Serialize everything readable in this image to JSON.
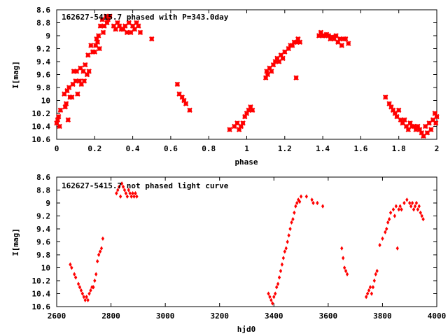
{
  "colors": {
    "points": "#ff0000",
    "axes": "#000000",
    "background": "#ffffff"
  },
  "chart_data": [
    {
      "type": "scatter",
      "title": "162627-5415.7 phased with P=343.0day",
      "xlabel": "phase",
      "ylabel": "I[mag]",
      "xlim": [
        0,
        2
      ],
      "ylim": [
        8.6,
        10.6
      ],
      "y_inverted": true,
      "grid": false,
      "xticks": [
        "0",
        "0.2",
        "0.4",
        "0.6",
        "0.8",
        "1",
        "1.2",
        "1.4",
        "1.6",
        "1.8",
        "2"
      ],
      "yticks": [
        "8.6",
        "8.8",
        "9",
        "9.2",
        "9.4",
        "9.6",
        "9.8",
        "10",
        "10.2",
        "10.4",
        "10.6"
      ],
      "series": [
        {
          "x": [
            0.0,
            0.005,
            0.01,
            0.015,
            0.02,
            0.04,
            0.045,
            0.05,
            0.055,
            0.06,
            0.065,
            0.07,
            0.08,
            0.085,
            0.09,
            0.1,
            0.105,
            0.11,
            0.12,
            0.125,
            0.13,
            0.14,
            0.145,
            0.15,
            0.16,
            0.165,
            0.17,
            0.18,
            0.19,
            0.2,
            0.205,
            0.21,
            0.215,
            0.22,
            0.225,
            0.23,
            0.24,
            0.245,
            0.25,
            0.26,
            0.265,
            0.27,
            0.28,
            0.3,
            0.31,
            0.32,
            0.33,
            0.34,
            0.35,
            0.36,
            0.37,
            0.38,
            0.39,
            0.4,
            0.41,
            0.42,
            0.43,
            0.44,
            0.5,
            0.635,
            0.645,
            0.66,
            0.67,
            0.68,
            0.7,
            0.91,
            0.935,
            0.95,
            0.96,
            0.97,
            0.98,
            0.99,
            1.0,
            1.01,
            1.02,
            1.03,
            1.1,
            1.105,
            1.11,
            1.12,
            1.13,
            1.14,
            1.15,
            1.16,
            1.17,
            1.18,
            1.19,
            1.2,
            1.22,
            1.23,
            1.24,
            1.25,
            1.26,
            1.265,
            1.27,
            1.28,
            1.38,
            1.39,
            1.4,
            1.41,
            1.42,
            1.43,
            1.44,
            1.45,
            1.46,
            1.47,
            1.48,
            1.49,
            1.5,
            1.51,
            1.52,
            1.535,
            1.73,
            1.75,
            1.76,
            1.77,
            1.78,
            1.79,
            1.8,
            1.81,
            1.82,
            1.83,
            1.84,
            1.85,
            1.86,
            1.87,
            1.88,
            1.89,
            1.9,
            1.91,
            1.92,
            1.93,
            1.94,
            1.95,
            1.96,
            1.97,
            1.98,
            1.99,
            1.995,
            2.0
          ],
          "y": [
            10.35,
            10.3,
            10.25,
            10.4,
            10.15,
            9.9,
            10.1,
            10.05,
            9.85,
            10.3,
            9.8,
            9.95,
            9.95,
            9.75,
            9.55,
            9.7,
            9.55,
            9.9,
            9.7,
            9.5,
            9.75,
            9.55,
            9.7,
            9.45,
            9.6,
            9.3,
            9.55,
            9.15,
            9.25,
            9.25,
            9.15,
            9.05,
            9.1,
            9.0,
            9.2,
            8.85,
            8.75,
            8.95,
            8.85,
            8.7,
            8.8,
            8.75,
            8.7,
            8.85,
            8.9,
            8.8,
            8.85,
            8.9,
            8.9,
            8.85,
            8.95,
            8.8,
            8.95,
            8.85,
            8.9,
            8.8,
            8.85,
            8.95,
            9.05,
            9.75,
            9.9,
            9.95,
            10.0,
            10.05,
            10.15,
            10.45,
            10.4,
            10.35,
            10.45,
            10.4,
            10.35,
            10.25,
            10.2,
            10.15,
            10.1,
            10.15,
            9.65,
            9.55,
            9.6,
            9.5,
            9.55,
            9.45,
            9.4,
            9.35,
            9.4,
            9.3,
            9.35,
            9.25,
            9.2,
            9.15,
            9.15,
            9.1,
            9.65,
            9.1,
            9.05,
            9.1,
            9.0,
            8.95,
            9.0,
            9.0,
            8.98,
            9.0,
            9.05,
            9.02,
            9.05,
            9.0,
            9.1,
            9.05,
            9.15,
            9.05,
            9.05,
            9.12,
            9.95,
            10.05,
            10.1,
            10.15,
            10.2,
            10.25,
            10.15,
            10.3,
            10.35,
            10.3,
            10.4,
            10.45,
            10.35,
            10.4,
            10.4,
            10.45,
            10.4,
            10.45,
            10.5,
            10.55,
            10.4,
            10.5,
            10.35,
            10.45,
            10.3,
            10.2,
            10.35,
            10.25
          ]
        }
      ]
    },
    {
      "type": "scatter",
      "title": "162627-5415.7 not phased light curve",
      "xlabel": "hjd0",
      "ylabel": "I[mag]",
      "xlim": [
        2600,
        4000
      ],
      "ylim": [
        8.6,
        10.6
      ],
      "y_inverted": true,
      "grid": false,
      "xticks": [
        "2600",
        "2800",
        "3000",
        "3200",
        "3400",
        "3600",
        "3800",
        "4000"
      ],
      "yticks": [
        "8.6",
        "8.8",
        "9",
        "9.2",
        "9.4",
        "9.6",
        "9.8",
        "10",
        "10.2",
        "10.4",
        "10.6"
      ],
      "series": [
        {
          "x": [
            2650,
            2655,
            2665,
            2670,
            2680,
            2685,
            2690,
            2695,
            2700,
            2705,
            2710,
            2715,
            2720,
            2725,
            2730,
            2735,
            2740,
            2745,
            2750,
            2755,
            2760,
            2765,
            2770,
            2820,
            2825,
            2830,
            2835,
            2840,
            2845,
            2850,
            2855,
            2860,
            2865,
            2870,
            2875,
            2880,
            2885,
            2890,
            2895,
            3380,
            3385,
            3390,
            3395,
            3400,
            3405,
            3410,
            3415,
            3420,
            3425,
            3430,
            3435,
            3440,
            3445,
            3450,
            3455,
            3460,
            3465,
            3470,
            3475,
            3480,
            3485,
            3490,
            3495,
            3500,
            3520,
            3540,
            3545,
            3560,
            3580,
            3650,
            3655,
            3660,
            3665,
            3670,
            3740,
            3745,
            3750,
            3755,
            3760,
            3765,
            3770,
            3775,
            3780,
            3790,
            3800,
            3810,
            3815,
            3820,
            3825,
            3830,
            3840,
            3845,
            3850,
            3855,
            3860,
            3865,
            3870,
            3880,
            3890,
            3900,
            3905,
            3910,
            3915,
            3920,
            3925,
            3930,
            3935,
            3940,
            3945,
            3950
          ],
          "y": [
            9.95,
            10.0,
            10.1,
            10.15,
            10.25,
            10.3,
            10.35,
            10.4,
            10.45,
            10.5,
            10.45,
            10.5,
            10.4,
            10.35,
            10.3,
            10.3,
            10.2,
            10.1,
            9.9,
            9.8,
            9.75,
            9.7,
            9.55,
            8.85,
            8.8,
            8.75,
            8.9,
            8.7,
            8.75,
            8.8,
            8.85,
            8.9,
            8.8,
            8.85,
            8.9,
            8.85,
            8.9,
            8.85,
            8.9,
            10.4,
            10.45,
            10.5,
            10.55,
            10.45,
            10.4,
            10.3,
            10.25,
            10.15,
            10.05,
            9.95,
            9.85,
            9.75,
            9.7,
            9.6,
            9.5,
            9.4,
            9.3,
            9.25,
            9.15,
            9.05,
            9.0,
            8.95,
            8.98,
            8.9,
            8.9,
            8.95,
            9.0,
            9.0,
            9.05,
            9.7,
            9.85,
            10.0,
            10.05,
            10.1,
            10.45,
            10.4,
            10.35,
            10.3,
            10.4,
            10.3,
            10.2,
            10.1,
            10.05,
            9.65,
            9.55,
            9.45,
            9.4,
            9.3,
            9.25,
            9.15,
            9.1,
            9.2,
            9.05,
            9.7,
            9.1,
            9.05,
            9.1,
            9.0,
            8.95,
            9.0,
            9.05,
            9.0,
            9.1,
            9.05,
            9.0,
            9.1,
            9.05,
            9.15,
            9.2,
            9.25
          ]
        }
      ]
    }
  ]
}
